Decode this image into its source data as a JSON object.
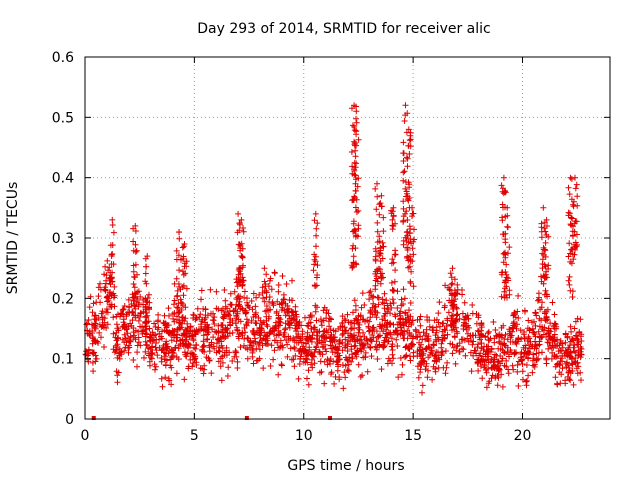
{
  "chart_data": {
    "type": "scatter",
    "title": "Day 293 of 2014, SRMTID for receiver alic",
    "xlabel": "GPS time / hours",
    "ylabel": "SRMTID / TECUs",
    "xlim": [
      0,
      24
    ],
    "ylim": [
      0,
      0.6
    ],
    "xticks": [
      0,
      5,
      10,
      15,
      20
    ],
    "xtick_labels": [
      "0",
      "5",
      "10",
      "15",
      "20"
    ],
    "yticks": [
      0,
      0.1,
      0.2,
      0.3,
      0.4,
      0.5,
      0.6
    ],
    "ytick_labels": [
      "0",
      "0.1",
      "0.2",
      "0.3",
      "0.4",
      "0.5",
      "0.6"
    ],
    "grid": true,
    "marker": "+",
    "color": "#e00000",
    "zero_markers_x": [
      0.4,
      7.4,
      11.2
    ],
    "envelope": {
      "x": [
        0,
        0.5,
        0.9,
        1.2,
        1.5,
        2,
        2.4,
        2.7,
        3,
        3.5,
        4,
        4.4,
        4.8,
        5.3,
        5.8,
        6.3,
        6.8,
        7.2,
        7.6,
        8,
        8.5,
        9,
        9.5,
        10,
        10.5,
        11,
        11.5,
        12,
        12.3,
        12.6,
        13,
        13.4,
        13.8,
        14.2,
        14.6,
        14.9,
        15.3,
        15.8,
        16.3,
        16.8,
        17.3,
        17.8,
        18.3,
        18.8,
        19.2,
        19.6,
        20,
        20.5,
        21,
        21.4,
        21.8,
        22.2,
        22.5,
        22.7
      ],
      "mean": [
        0.13,
        0.14,
        0.2,
        0.22,
        0.13,
        0.15,
        0.17,
        0.16,
        0.12,
        0.12,
        0.13,
        0.14,
        0.12,
        0.14,
        0.14,
        0.15,
        0.16,
        0.17,
        0.14,
        0.15,
        0.16,
        0.17,
        0.15,
        0.12,
        0.13,
        0.14,
        0.11,
        0.12,
        0.14,
        0.13,
        0.15,
        0.16,
        0.15,
        0.14,
        0.15,
        0.14,
        0.11,
        0.12,
        0.13,
        0.17,
        0.15,
        0.13,
        0.11,
        0.1,
        0.12,
        0.14,
        0.11,
        0.13,
        0.15,
        0.14,
        0.1,
        0.1,
        0.12,
        0.11
      ],
      "spread": [
        0.04,
        0.05,
        0.06,
        0.06,
        0.05,
        0.05,
        0.06,
        0.05,
        0.04,
        0.04,
        0.05,
        0.05,
        0.04,
        0.05,
        0.05,
        0.05,
        0.06,
        0.06,
        0.05,
        0.05,
        0.06,
        0.06,
        0.05,
        0.04,
        0.05,
        0.05,
        0.04,
        0.05,
        0.05,
        0.05,
        0.06,
        0.06,
        0.05,
        0.05,
        0.05,
        0.05,
        0.04,
        0.04,
        0.05,
        0.06,
        0.05,
        0.05,
        0.04,
        0.04,
        0.04,
        0.05,
        0.04,
        0.05,
        0.05,
        0.05,
        0.04,
        0.04,
        0.05,
        0.04
      ]
    },
    "spikes": [
      {
        "x": 1.25,
        "ymin": 0.2,
        "ymax": 0.33
      },
      {
        "x": 2.3,
        "ymin": 0.2,
        "ymax": 0.32
      },
      {
        "x": 2.85,
        "ymin": 0.18,
        "ymax": 0.27
      },
      {
        "x": 4.3,
        "ymin": 0.17,
        "ymax": 0.31
      },
      {
        "x": 4.55,
        "ymin": 0.18,
        "ymax": 0.29
      },
      {
        "x": 7.0,
        "ymin": 0.22,
        "ymax": 0.34
      },
      {
        "x": 7.15,
        "ymin": 0.22,
        "ymax": 0.33
      },
      {
        "x": 8.2,
        "ymin": 0.2,
        "ymax": 0.25
      },
      {
        "x": 10.55,
        "ymin": 0.22,
        "ymax": 0.34
      },
      {
        "x": 12.3,
        "ymin": 0.25,
        "ymax": 0.52
      },
      {
        "x": 12.4,
        "ymin": 0.3,
        "ymax": 0.51
      },
      {
        "x": 13.35,
        "ymin": 0.22,
        "ymax": 0.39
      },
      {
        "x": 13.55,
        "ymin": 0.22,
        "ymax": 0.37
      },
      {
        "x": 14.1,
        "ymin": 0.2,
        "ymax": 0.35
      },
      {
        "x": 14.65,
        "ymin": 0.28,
        "ymax": 0.52
      },
      {
        "x": 14.8,
        "ymin": 0.25,
        "ymax": 0.48
      },
      {
        "x": 14.95,
        "ymin": 0.22,
        "ymax": 0.35
      },
      {
        "x": 16.8,
        "ymin": 0.18,
        "ymax": 0.25
      },
      {
        "x": 19.15,
        "ymin": 0.2,
        "ymax": 0.4
      },
      {
        "x": 19.3,
        "ymin": 0.2,
        "ymax": 0.35
      },
      {
        "x": 20.95,
        "ymin": 0.22,
        "ymax": 0.35
      },
      {
        "x": 21.1,
        "ymin": 0.2,
        "ymax": 0.33
      },
      {
        "x": 22.2,
        "ymin": 0.2,
        "ymax": 0.4
      },
      {
        "x": 22.4,
        "ymin": 0.25,
        "ymax": 0.4
      }
    ],
    "point_density": 2200
  }
}
